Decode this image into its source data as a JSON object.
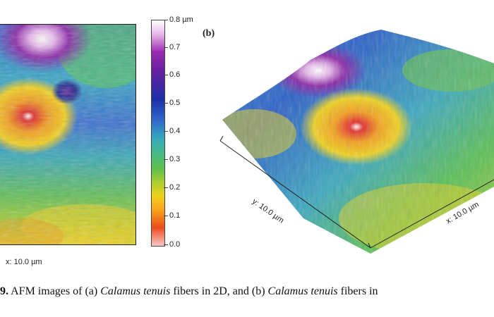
{
  "figure": {
    "panel_b_label": "(b)",
    "x_axis_2d": "x: 10.0 µm",
    "y_axis_3d": "y: 10.0 µm",
    "x_axis_3d": "x: 10.0 µm",
    "colorbar": {
      "unit_label": "0.8 µm",
      "ticks": [
        "0.8 µm",
        "0.7",
        "0.6",
        "0.5",
        "0.4",
        "0.3",
        "0.2",
        "0.1",
        "0.0"
      ],
      "range": [
        0.0,
        0.8
      ]
    }
  },
  "caption": {
    "fig_no": "9.",
    "text_1": " AFM images of (a) ",
    "species_1": "Calamus tenuis",
    "text_2": " fibers in 2D, and (b) ",
    "species_2": "Calamus tenuis",
    "text_3": " fibers in"
  }
}
